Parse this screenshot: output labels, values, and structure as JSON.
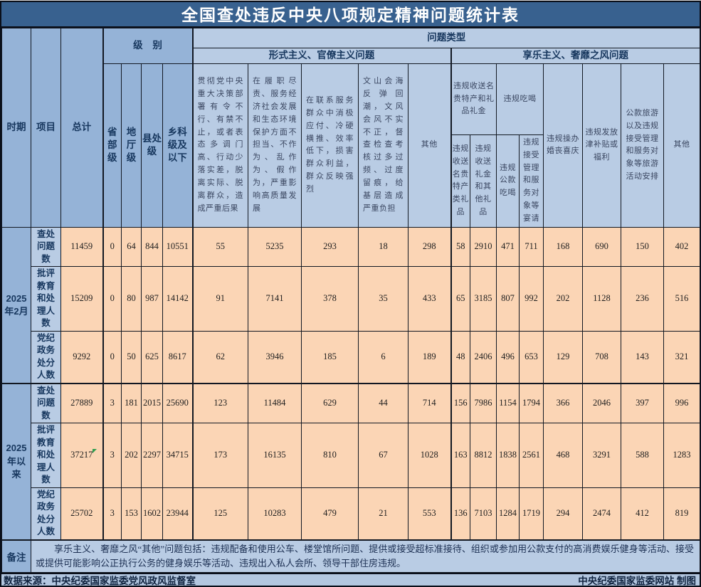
{
  "title": "全国查处违反中央八项规定精神问题统计表",
  "colors": {
    "title_bar": "#38618F",
    "header_dark_blue": "#95B3D7",
    "header_light_blue": "#B9CCE4",
    "data_cell_peach": "#FBD5B5",
    "footer_band": "#B3C7E0",
    "header_text": "#17375E",
    "border": "#121822",
    "marker_green": "#2E9E4F"
  },
  "header": {
    "period": "时期",
    "item": "项目",
    "total": "总计",
    "level": "级 别",
    "problem_type": "问题类型",
    "levels": [
      "省部级",
      "地厅级",
      "县处级",
      "乡科级及以下"
    ],
    "formalism": {
      "label": "形式主义、官僚主义问题",
      "columns": [
        "贯彻党中央重大决策部署有令不行、有禁不止，或者表态多调门高、行动少落实差，脱离实际、脱离群众，造成严重后果",
        "在履职尽责、服务经济社会发展和生态环境保护方面不担当、不作为、乱作为、假作为，严重影响高质量发展",
        "在联系服务群众中消极应付、冷硬横推、效率低下，损害群众利益，群众反映强烈",
        "文山会海反弹回潮，文风会风不实不正，督查检查考核过多过频、过度留痕，给基层造成严重负担",
        "其他"
      ]
    },
    "hedonism": {
      "label": "享乐主义、奢靡之风问题",
      "groups": [
        {
          "label": "违规收送名贵特产和礼品礼金",
          "children": [
            "违规收送名贵特产类礼品",
            "违规收送礼金和其他礼品"
          ]
        },
        {
          "label": "违规吃喝",
          "children": [
            "违规公款吃喝",
            "违规接受管理和服务对象等宴请"
          ]
        }
      ],
      "columns": [
        "违规操办婚丧喜庆",
        "违规发放津补贴或福利",
        "公款旅游以及违规接受管理和服务对象等旅游活动安排",
        "其他"
      ]
    }
  },
  "chart_data": {
    "type": "table",
    "title": "全国查处违反中央八项规定精神问题统计表",
    "columns": [
      "总计",
      "省部级",
      "地厅级",
      "县处级",
      "乡科级及以下",
      "贯彻党中央重大决策部署有令不行、有禁不止，或者表态多调门高、行动少落实差，脱离实际、脱离群众，造成严重后果",
      "在履职尽责、服务经济社会发展和生态环境保护方面不担当、不作为、乱作为、假作为，严重影响高质量发展",
      "在联系服务群众中消极应付、冷硬横推、效率低下，损害群众利益，群众反映强烈",
      "文山会海反弹回潮，文风会风不实不正，督查检查考核过多过频、过度留痕，给基层造成严重负担",
      "形式主义其他",
      "违规收送名贵特产类礼品",
      "违规收送礼金和其他礼品",
      "违规公款吃喝",
      "违规接受管理和服务对象等宴请",
      "违规操办婚丧喜庆",
      "违规发放津补贴或福利",
      "公款旅游以及违规接受管理和服务对象等旅游活动安排",
      "享乐主义其他"
    ],
    "row_groups": [
      {
        "period": "2025年2月",
        "rows": [
          {
            "item": "查处问题数",
            "values": [
              11459,
              0,
              64,
              844,
              10551,
              55,
              5235,
              293,
              18,
              298,
              58,
              2910,
              471,
              711,
              168,
              690,
              150,
              402
            ]
          },
          {
            "item": "批评教育和处理人数",
            "values": [
              15209,
              0,
              80,
              987,
              14142,
              91,
              7141,
              378,
              35,
              433,
              65,
              3185,
              807,
              992,
              202,
              1128,
              236,
              516
            ]
          },
          {
            "item": "党纪政务处分人数",
            "values": [
              9292,
              0,
              50,
              625,
              8617,
              62,
              3946,
              185,
              6,
              189,
              48,
              2406,
              496,
              653,
              129,
              708,
              143,
              321
            ]
          }
        ]
      },
      {
        "period": "2025年以来",
        "rows": [
          {
            "item": "查处问题数",
            "values": [
              27889,
              3,
              181,
              2015,
              25690,
              123,
              11484,
              629,
              44,
              714,
              156,
              7986,
              1154,
              1794,
              366,
              2046,
              397,
              996
            ]
          },
          {
            "item": "批评教育和处理人数",
            "values": [
              37217,
              3,
              202,
              2297,
              34715,
              173,
              16135,
              810,
              67,
              1028,
              163,
              8812,
              1838,
              2561,
              468,
              3291,
              588,
              1283
            ]
          },
          {
            "item": "党纪政务处分人数",
            "values": [
              25702,
              3,
              153,
              1602,
              23944,
              125,
              10283,
              479,
              21,
              553,
              136,
              7103,
              1284,
              1719,
              294,
              2474,
              412,
              819
            ]
          }
        ]
      }
    ]
  },
  "notes": {
    "label": "备注",
    "text": "享乐主义、奢靡之风“其他”问题包括：违规配备和使用公车、楼堂馆所问题、提供或接受超标准接待、组织或参加用公款支付的高消费娱乐健身等活动、接受或提供可能影响公正执行公务的健身娱乐等活动、违规出入私人会所、领导干部住房违规。"
  },
  "footer": {
    "source": "数据来源：中央纪委国家监委党风政风监督室",
    "credit": "中央纪委国家监委网站 制图"
  }
}
